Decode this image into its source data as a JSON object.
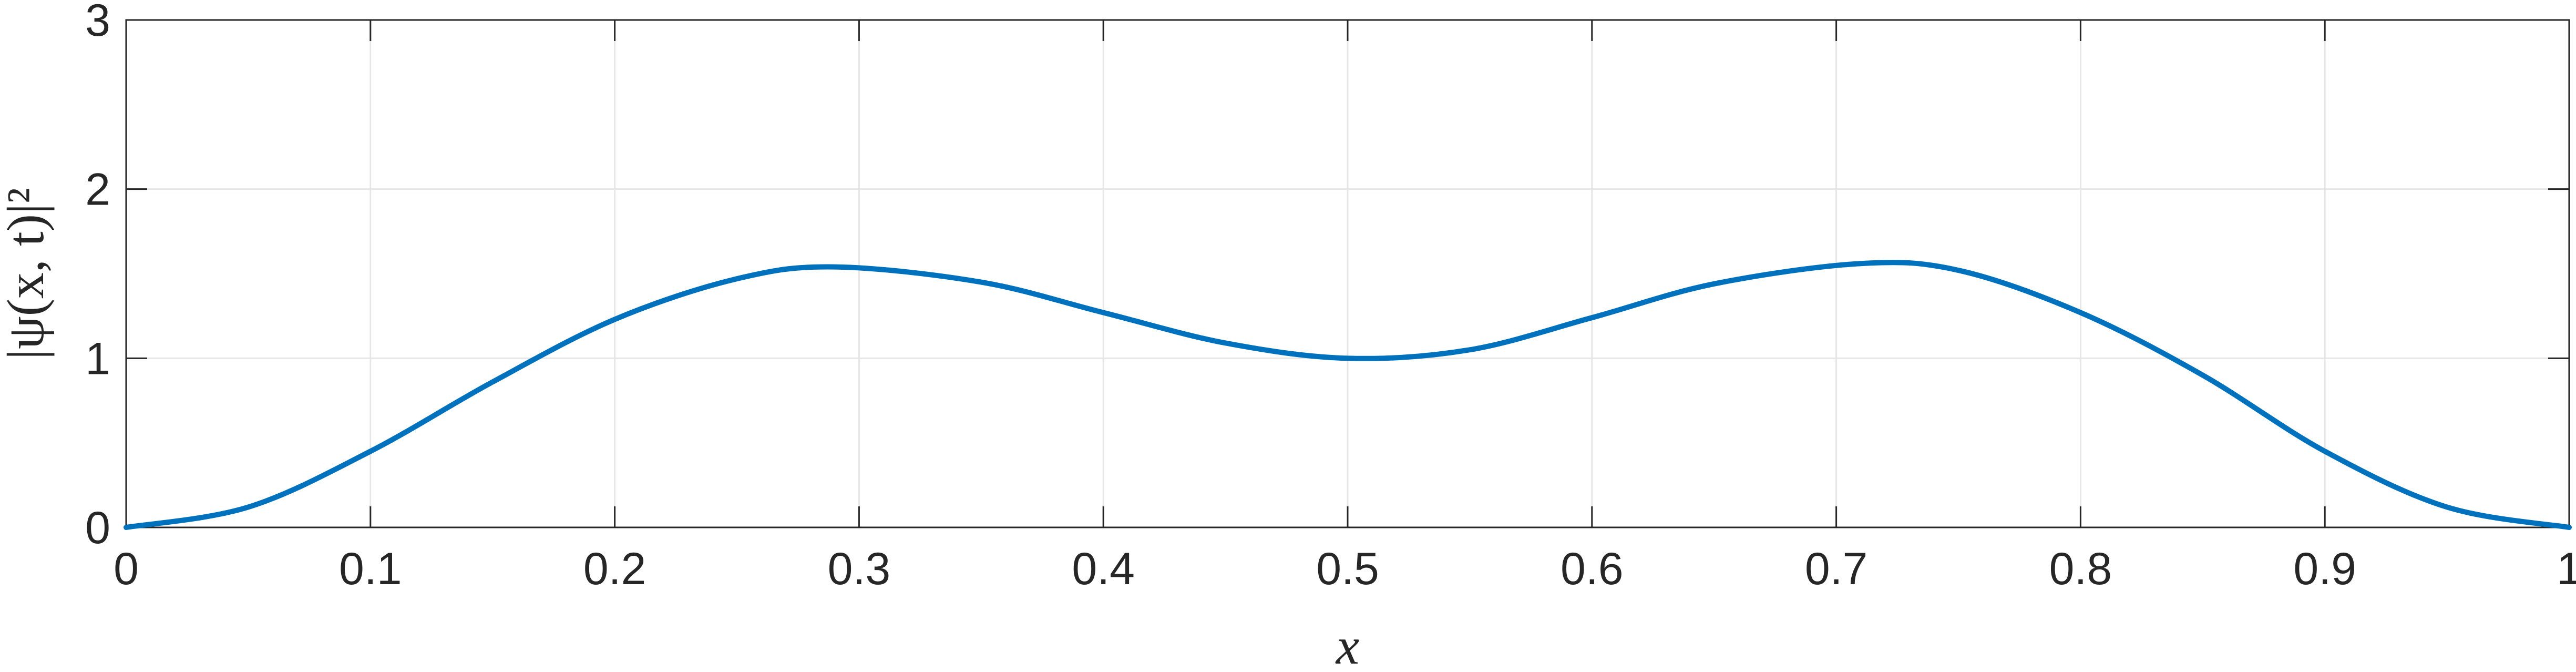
{
  "chart_data": {
    "type": "line",
    "xlabel": "x",
    "ylabel": "|ψ(x, t)|²",
    "xlim": [
      0,
      1
    ],
    "ylim": [
      0,
      3
    ],
    "grid": true,
    "x_ticks": [
      "0",
      "0.1",
      "0.2",
      "0.3",
      "0.4",
      "0.5",
      "0.6",
      "0.7",
      "0.8",
      "0.9",
      "1"
    ],
    "y_ticks": [
      "0",
      "1",
      "2",
      "3"
    ],
    "series": [
      {
        "color": "#0072BD",
        "x": [
          0,
          0.05,
          0.1,
          0.15,
          0.2,
          0.25,
          0.29,
          0.35,
          0.4,
          0.45,
          0.5,
          0.55,
          0.6,
          0.65,
          0.71,
          0.75,
          0.8,
          0.85,
          0.9,
          0.95,
          1
        ],
        "y": [
          0,
          0.12,
          0.45,
          0.86,
          1.23,
          1.47,
          1.54,
          1.45,
          1.27,
          1.09,
          1.0,
          1.05,
          1.24,
          1.44,
          1.56,
          1.52,
          1.27,
          0.9,
          0.45,
          0.12,
          0
        ]
      }
    ]
  }
}
